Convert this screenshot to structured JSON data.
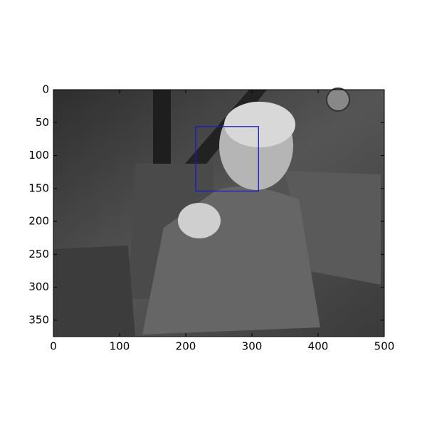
{
  "chart_data": {
    "type": "image",
    "xlim": [
      0,
      500
    ],
    "ylim": [
      375,
      0
    ],
    "xticks": [
      0,
      100,
      200,
      300,
      400,
      500
    ],
    "yticks": [
      0,
      50,
      100,
      150,
      200,
      250,
      300,
      350
    ],
    "boxes": [
      {
        "x0": 215,
        "y0": 56,
        "x1": 310,
        "y1": 154,
        "color": "#1a1acc"
      }
    ]
  }
}
